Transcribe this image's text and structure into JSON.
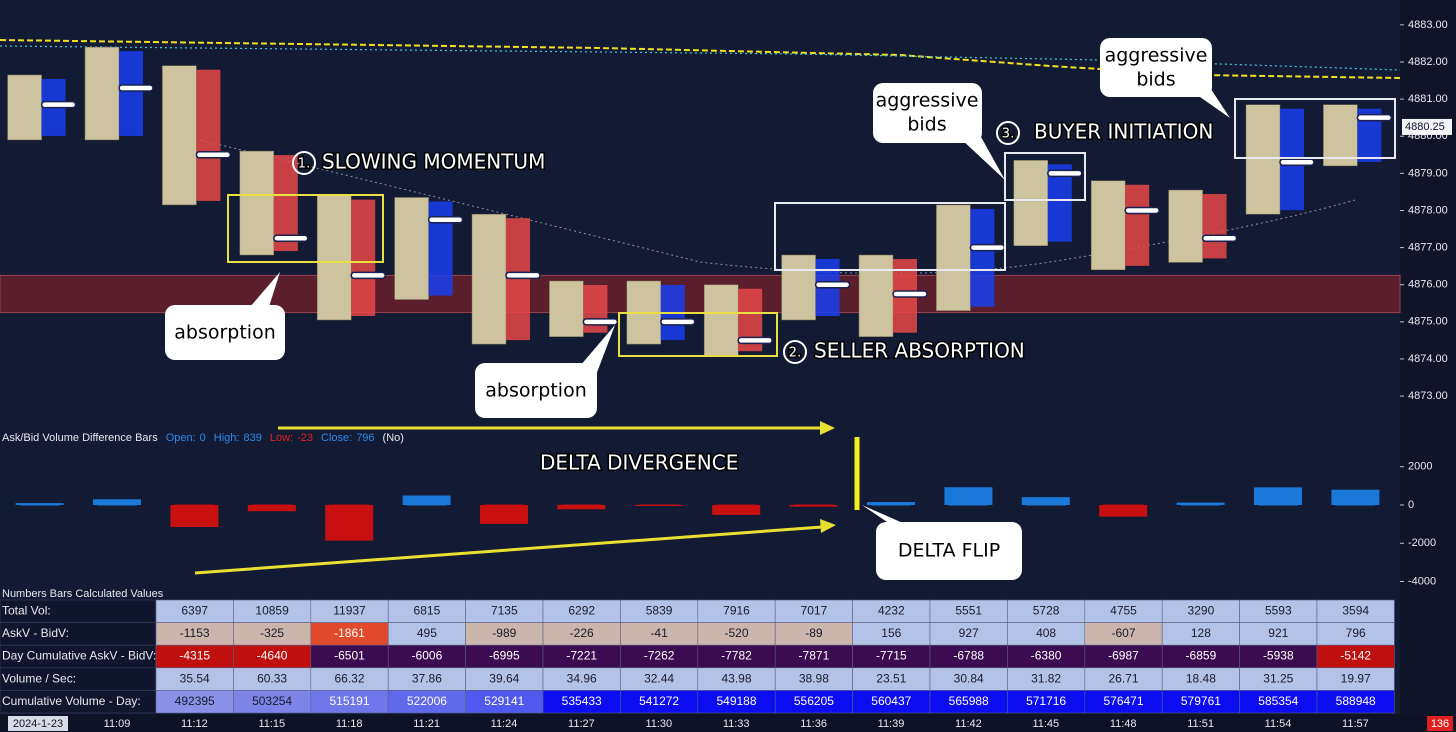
{
  "chart_data": [
    {
      "type": "candlestick",
      "high": [
        4881.65,
        4882.4,
        4881.9,
        4879.6,
        4878.4,
        4878.35,
        4877.9,
        4876.1,
        4876.1,
        4876.0,
        4876.8,
        4876.8,
        4878.15,
        4879.35,
        4878.8,
        4878.55,
        4880.85,
        4880.85
      ],
      "low": [
        4879.9,
        4879.9,
        4878.15,
        4876.8,
        4875.05,
        4875.6,
        4874.4,
        4874.6,
        4874.4,
        4874.1,
        4875.05,
        4874.6,
        4875.3,
        4877.05,
        4876.4,
        4876.6,
        4877.9,
        4879.2
      ],
      "close": [
        4880.85,
        4881.3,
        4879.5,
        4877.25,
        4876.25,
        4877.75,
        4876.25,
        4875.0,
        4875.0,
        4874.5,
        4876.0,
        4875.75,
        4877.0,
        4879.0,
        4878.0,
        4877.25,
        4879.3,
        4880.5
      ],
      "ylim": [
        4872.49,
        4883.67
      ],
      "yticks": [
        {
          "value": 4883,
          "label": "4883.00"
        },
        {
          "value": 4882,
          "label": "4882.00"
        },
        {
          "value": 4881,
          "label": "4881.00"
        },
        {
          "value": 4880,
          "label": "4880.00"
        },
        {
          "value": 4879,
          "label": "4879.00"
        },
        {
          "value": 4878,
          "label": "4878.00"
        },
        {
          "value": 4877,
          "label": "4877.00"
        },
        {
          "value": 4876,
          "label": "4876.00"
        },
        {
          "value": 4875,
          "label": "4875.00"
        },
        {
          "value": 4874,
          "label": "4874.00"
        },
        {
          "value": 4873,
          "label": "4873.00"
        }
      ],
      "last_price": 4880.25,
      "zone": [
        4875.25,
        4876.25
      ],
      "zone_color": "#5a1e2c",
      "cell_color": "#cdc39e",
      "up_color": "#1a3ef0",
      "down_color": "#e84848"
    },
    {
      "type": "bar",
      "title": "Ask/Bid Volume Difference Bars",
      "ohlc": [
        {
          "label": "Open:",
          "value": 0,
          "color": "#2a8ae8"
        },
        {
          "label": "High:",
          "value": 839,
          "color": "#2a8ae8"
        },
        {
          "label": "Low:",
          "value": -23,
          "color": "#e02020"
        },
        {
          "label": "Close:",
          "value": 796,
          "color": "#2a8ae8"
        }
      ],
      "flag": "(No)",
      "values": [
        100,
        300,
        -1153,
        -325,
        -1861,
        495,
        -989,
        -226,
        -41,
        -520,
        -89,
        156,
        927,
        408,
        -607,
        128,
        921,
        796
      ],
      "ylim": [
        -4600,
        3500
      ],
      "yticks": [
        2000,
        0,
        -2000,
        -4000
      ],
      "up_color": "#1a78d8",
      "down_color": "#c81010"
    }
  ],
  "annotations": {
    "headings": [
      {
        "number": "1.",
        "text": "SLOWING MOMENTUM"
      },
      {
        "number": "2.",
        "text": "SELLER ABSORPTION"
      },
      {
        "number": "3.",
        "text": "BUYER INITIATION"
      },
      {
        "text": "DELTA DIVERGENCE"
      }
    ],
    "callouts": [
      {
        "lines": [
          "absorption"
        ]
      },
      {
        "lines": [
          "absorption"
        ]
      },
      {
        "lines": [
          "aggressive",
          "bids"
        ]
      },
      {
        "lines": [
          "aggressive",
          "bids"
        ]
      },
      {
        "lines": [
          "DELTA FLIP"
        ]
      }
    ]
  },
  "table": {
    "title": "Numbers Bars Calculated Values",
    "rows": [
      {
        "label": "Total Vol:",
        "values": [
          6397,
          10859,
          11937,
          6815,
          7135,
          6292,
          5839,
          7916,
          7017,
          4232,
          5551,
          5728,
          4755,
          3290,
          5593,
          3594
        ],
        "colors": [
          "#b3c3e8",
          "#b3c3e8",
          "#b3c3e8",
          "#b3c3e8",
          "#b3c3e8",
          "#b3c3e8",
          "#b3c3e8",
          "#b3c3e8",
          "#b3c3e8",
          "#b3c3e8",
          "#b3c3e8",
          "#b3c3e8",
          "#b3c3e8",
          "#b3c3e8",
          "#b3c3e8",
          "#b3c3e8"
        ]
      },
      {
        "label": "AskV - BidV:",
        "values": [
          -1153,
          -325,
          -1861,
          495,
          -989,
          -226,
          -41,
          -520,
          -89,
          156,
          927,
          408,
          -607,
          128,
          921,
          796
        ],
        "colors": [
          "#cbb5ad",
          "#cbb5ad",
          "#e04a2a",
          "#b3c3e8",
          "#cbb5ad",
          "#cbb5ad",
          "#cbb5ad",
          "#cbb5ad",
          "#cbb5ad",
          "#b3c3e8",
          "#b3c3e8",
          "#b3c3e8",
          "#cbb5ad",
          "#b3c3e8",
          "#b3c3e8",
          "#b3c3e8"
        ]
      },
      {
        "label": "Day Cumulative AskV - BidV:",
        "values": [
          -4315,
          -4640,
          -6501,
          -6006,
          -6995,
          -7221,
          -7262,
          -7782,
          -7871,
          -7715,
          -6788,
          -6380,
          -6987,
          -6859,
          -5938,
          -5142
        ],
        "colors": [
          "#c00f0f",
          "#c00f0f",
          "#3c0c52",
          "#3c0c52",
          "#3c0c52",
          "#3c0c52",
          "#3c0c52",
          "#3c0c52",
          "#3c0c52",
          "#3c0c52",
          "#3c0c52",
          "#3c0c52",
          "#3c0c52",
          "#3c0c52",
          "#3c0c52",
          "#c00f0f"
        ]
      },
      {
        "label": "Volume / Sec:",
        "values": [
          35.54,
          60.33,
          66.32,
          37.86,
          39.64,
          34.96,
          32.44,
          43.98,
          38.98,
          23.51,
          30.84,
          31.82,
          26.71,
          18.48,
          31.25,
          19.97
        ],
        "colors": [
          "#b3c3e8",
          "#b3c3e8",
          "#b3c3e8",
          "#b3c3e8",
          "#b3c3e8",
          "#b3c3e8",
          "#b3c3e8",
          "#b3c3e8",
          "#b3c3e8",
          "#b3c3e8",
          "#b3c3e8",
          "#b3c3e8",
          "#b3c3e8",
          "#b3c3e8",
          "#b3c3e8",
          "#b3c3e8"
        ]
      },
      {
        "label": "Cumulative Volume - Day:",
        "values": [
          492395,
          503254,
          515191,
          522006,
          529141,
          535433,
          541272,
          549188,
          556205,
          560437,
          565988,
          571716,
          576471,
          579761,
          585354,
          588948
        ],
        "colors": [
          "#8a92e8",
          "#7c84e8",
          "#6e76ea",
          "#6068ec",
          "#5058ee",
          "#0c0cf0",
          "#0c0cf0",
          "#0c0cf0",
          "#0c0cf0",
          "#0c0cf0",
          "#0c0cf0",
          "#0c0cf0",
          "#0c0cf0",
          "#0c0cf0",
          "#0c0cf0",
          "#0c0cf0"
        ]
      }
    ]
  },
  "time_axis": {
    "date": "2024-1-23",
    "times": [
      "11:09",
      "11:12",
      "11:15",
      "11:18",
      "11:21",
      "11:24",
      "11:27",
      "11:30",
      "11:33",
      "11:36",
      "11:39",
      "11:42",
      "11:45",
      "11:48",
      "11:51",
      "11:54",
      "11:57"
    ],
    "counter": 136
  }
}
